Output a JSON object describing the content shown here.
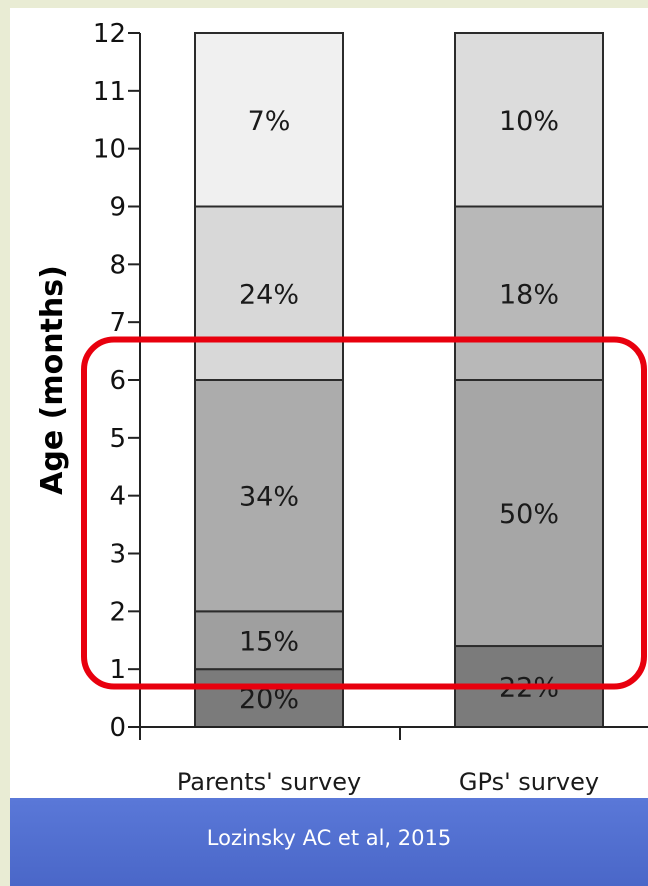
{
  "chart_data": {
    "type": "bar",
    "stacked": true,
    "ylabel": "Age (months)",
    "ylim": [
      0,
      12
    ],
    "yticks": [
      "0",
      "1",
      "2",
      "3",
      "4",
      "5",
      "6",
      "7",
      "8",
      "9",
      "10",
      "11",
      "12"
    ],
    "categories": [
      "Parents' survey",
      "GPs' survey"
    ],
    "bars": [
      {
        "category": "Parents' survey",
        "segments": [
          {
            "from": 0,
            "to": 1,
            "label": "20%",
            "color": "#7b7b7b"
          },
          {
            "from": 1,
            "to": 2,
            "label": "15%",
            "color": "#9f9f9f"
          },
          {
            "from": 2,
            "to": 6,
            "label": "34%",
            "color": "#acacac"
          },
          {
            "from": 6,
            "to": 9,
            "label": "24%",
            "color": "#d8d8d8"
          },
          {
            "from": 9,
            "to": 12,
            "label": "7%",
            "color": "#f0f0f0"
          }
        ]
      },
      {
        "category": "GPs' survey",
        "segments": [
          {
            "from": 0,
            "to": 1.4,
            "label": "22%",
            "color": "#7b7b7b"
          },
          {
            "from": 1.4,
            "to": 6,
            "label": "50%",
            "color": "#a6a6a6"
          },
          {
            "from": 6,
            "to": 9,
            "label": "18%",
            "color": "#b8b8b8"
          },
          {
            "from": 9,
            "to": 12,
            "label": "10%",
            "color": "#dcdcdc"
          }
        ]
      }
    ],
    "highlight": {
      "from": 0.7,
      "to": 6.7,
      "color": "#e8000e"
    }
  },
  "footer": {
    "citation": "Lozinsky AC et al, 2015"
  }
}
